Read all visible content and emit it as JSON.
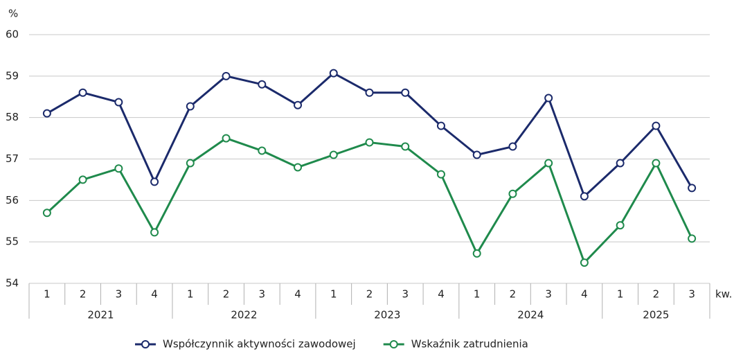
{
  "chart_data": {
    "type": "line",
    "y_axis_label": "%",
    "x_axis_label": "kw.",
    "categories": [
      [
        "2021",
        "1"
      ],
      [
        "2021",
        "2"
      ],
      [
        "2021",
        "3"
      ],
      [
        "2021",
        "4"
      ],
      [
        "2022",
        "1"
      ],
      [
        "2022",
        "2"
      ],
      [
        "2022",
        "3"
      ],
      [
        "2022",
        "4"
      ],
      [
        "2023",
        "1"
      ],
      [
        "2023",
        "2"
      ],
      [
        "2023",
        "3"
      ],
      [
        "2023",
        "4"
      ],
      [
        "2024",
        "1"
      ],
      [
        "2024",
        "2"
      ],
      [
        "2024",
        "3"
      ],
      [
        "2024",
        "4"
      ],
      [
        "2025",
        "1"
      ],
      [
        "2025",
        "2"
      ],
      [
        "2025",
        "3"
      ]
    ],
    "series": [
      {
        "name": "Współczynnik aktywności zawodowej",
        "color": "#1b2a6b",
        "values": [
          58.1,
          58.6,
          58.37,
          56.45,
          58.27,
          59.0,
          58.8,
          58.3,
          59.07,
          58.6,
          58.6,
          57.8,
          57.1,
          57.3,
          58.47,
          56.1,
          56.9,
          57.8,
          56.3
        ]
      },
      {
        "name": "Wskaźnik zatrudnienia",
        "color": "#1f8a4c",
        "values": [
          55.7,
          56.5,
          56.77,
          55.23,
          56.9,
          57.5,
          57.2,
          56.8,
          57.1,
          57.4,
          57.3,
          56.63,
          54.72,
          56.16,
          56.9,
          54.5,
          55.4,
          56.9,
          55.08
        ]
      }
    ],
    "ylim": [
      54,
      60
    ],
    "yticks": [
      54,
      55,
      56,
      57,
      58,
      59,
      60
    ],
    "grid": true,
    "legend": "bottom"
  }
}
